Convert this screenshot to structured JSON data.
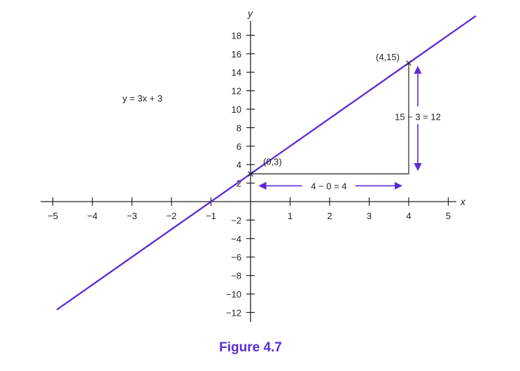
{
  "chart_data": {
    "type": "line",
    "title": "",
    "xlabel": "x",
    "ylabel": "y",
    "xlim": [
      -5,
      5
    ],
    "ylim": [
      -12,
      18
    ],
    "x_ticks": [
      -5,
      -4,
      -3,
      -2,
      -1,
      1,
      2,
      3,
      4,
      5
    ],
    "y_ticks": [
      -12,
      -10,
      -8,
      -6,
      -4,
      -2,
      2,
      4,
      6,
      8,
      10,
      12,
      14,
      16,
      18
    ],
    "x_tick_labels": [
      "−5",
      "−4",
      "−3",
      "−2",
      "−1",
      "1",
      "2",
      "3",
      "4",
      "5"
    ],
    "y_tick_labels": [
      "−12",
      "−10",
      "−8",
      "−6",
      "−4",
      "−2",
      "2",
      "4",
      "6",
      "8",
      "10",
      "12",
      "14",
      "16",
      "18"
    ],
    "series": [
      {
        "x": [
          -4.9,
          5.7
        ],
        "y": [
          -11.7,
          20.1
        ]
      }
    ],
    "points": [
      {
        "x": 0,
        "y": 3,
        "label": "(0,3)"
      },
      {
        "x": 4,
        "y": 15,
        "label": "(4,15)"
      }
    ],
    "equation_label": "y = 3x + 3",
    "annotations": {
      "run": "4 − 0 = 4",
      "rise": "15 − 3 = 12"
    },
    "line_color": "#5b2bd6",
    "grid": false
  },
  "caption": "Figure 4.7"
}
